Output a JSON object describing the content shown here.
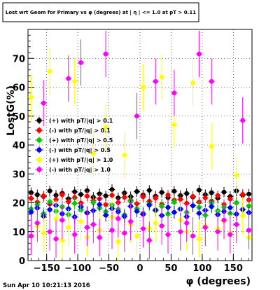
{
  "timestamp": "Sun Apr 10 10:21:13 2016",
  "chart_data": {
    "type": "scatter",
    "title": "Lost wrt Geom for Primary vs φ (degrees) at | η | <= 1.0 at pT > 0.11",
    "xlabel": "φ (degrees)",
    "ylabel": "LostG(%)",
    "xlim": [
      -180,
      180
    ],
    "ylim": [
      0,
      80
    ],
    "xticks": [
      -150,
      -100,
      -50,
      0,
      50,
      100,
      150
    ],
    "yticks": [
      0,
      10,
      20,
      30,
      40,
      50,
      60,
      70
    ],
    "grid": "dotted",
    "legend_position": "middle-left",
    "series": [
      {
        "name": "(+) with pT/|q| > 0.1",
        "color": "#000000",
        "values": [
          23.5,
          22.8,
          22.2,
          24.1,
          22.6,
          23.3,
          21.4,
          23.8,
          22.9,
          24.2,
          21.9,
          23.1,
          22.4,
          24.6,
          21.7,
          23.4,
          22.1,
          23.9,
          22.7,
          24.3,
          22.3,
          23.6,
          21.8,
          24.0,
          22.5,
          23.2,
          22.0,
          24.4,
          22.8,
          23.5,
          21.6,
          23.7,
          22.2,
          24.1,
          22.6,
          23.0
        ]
      },
      {
        "name": "(-) with pT/|q| > 0.1",
        "color": "#ff0000",
        "values": [
          21.5,
          20.2,
          22.4,
          19.6,
          21.1,
          22.8,
          20.4,
          21.8,
          19.9,
          22.3,
          20.7,
          21.4,
          19.3,
          22.6,
          20.1,
          21.9,
          20.8,
          19.7,
          22.1,
          20.5,
          21.6,
          19.5,
          22.7,
          20.9,
          21.2,
          19.8,
          22.2,
          20.3,
          21.7,
          20.6,
          22.5,
          19.4,
          21.3,
          20.0,
          22.9,
          21.0
        ]
      },
      {
        "name": "(+) with pT/|q| > 0.5",
        "color": "#00cc00",
        "values": [
          17.8,
          19.4,
          16.2,
          20.3,
          17.1,
          18.6,
          15.9,
          19.8,
          17.5,
          16.6,
          20.1,
          18.2,
          16.9,
          19.2,
          17.7,
          15.8,
          20.4,
          18.0,
          16.4,
          19.6,
          17.3,
          18.8,
          16.1,
          20.2,
          17.9,
          16.7,
          19.0,
          18.4,
          15.7,
          19.9,
          17.2,
          18.5,
          16.3,
          20.0,
          17.6,
          18.9
        ]
      },
      {
        "name": "(-) with pT/|q| > 0.5",
        "color": "#0000ff",
        "values": [
          16.8,
          18.2,
          15.4,
          17.6,
          19.1,
          16.2,
          17.9,
          15.1,
          18.6,
          16.5,
          17.3,
          19.4,
          15.7,
          18.0,
          16.9,
          15.3,
          18.8,
          17.1,
          16.0,
          19.2,
          17.5,
          15.6,
          18.4,
          16.7,
          17.8,
          15.2,
          19.0,
          16.4,
          17.4,
          18.7,
          15.9,
          17.0,
          18.3,
          16.1,
          17.7,
          16.6
        ]
      },
      {
        "name": "(+) with pT/|q| > 1.0",
        "color": "#ffff00",
        "values": [
          56.5,
          12.0,
          9.5,
          65.5,
          14.5,
          7.0,
          11.5,
          62.0,
          13.5,
          8.0,
          37.0,
          10.5,
          46.0,
          15.0,
          6.5,
          36.5,
          12.5,
          8.5,
          60.0,
          11.0,
          13.0,
          63.5,
          9.0,
          47.0,
          14.0,
          10.0,
          61.5,
          7.5,
          12.0,
          39.5,
          11.0,
          13.5,
          9.5,
          29.5,
          15.5,
          8.0
        ]
      },
      {
        "name": "(-) with pT/|q| > 1.0",
        "color": "#ff00ff",
        "values": [
          8.5,
          13.0,
          54.5,
          10.0,
          7.5,
          14.0,
          63.0,
          9.0,
          68.5,
          11.5,
          12.5,
          8.0,
          71.5,
          10.5,
          14.5,
          9.5,
          13.5,
          50.0,
          11.0,
          7.0,
          62.0,
          12.0,
          9.0,
          58.0,
          10.0,
          13.0,
          8.5,
          71.5,
          11.5,
          62.0,
          10.0,
          14.0,
          9.0,
          12.5,
          48.5,
          10.5
        ]
      }
    ]
  }
}
